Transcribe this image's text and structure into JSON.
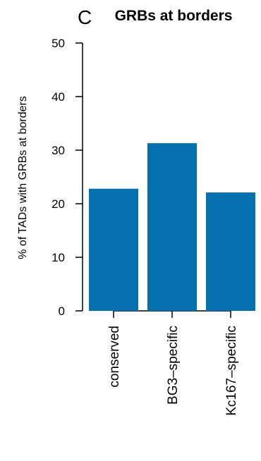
{
  "panel_letter": "C",
  "chart_data": {
    "type": "bar",
    "title": "GRBs at borders",
    "xlabel": "",
    "ylabel": "% of TADs with GRBs at borders",
    "categories": [
      "conserved",
      "BG3–specific",
      "Kc167–specific"
    ],
    "values": [
      22.8,
      31.3,
      22.1
    ],
    "ylim": [
      0,
      50
    ],
    "yticks": [
      0,
      10,
      20,
      30,
      40,
      50
    ],
    "bar_color": "#0570b0",
    "grid": false,
    "legend": "none"
  }
}
